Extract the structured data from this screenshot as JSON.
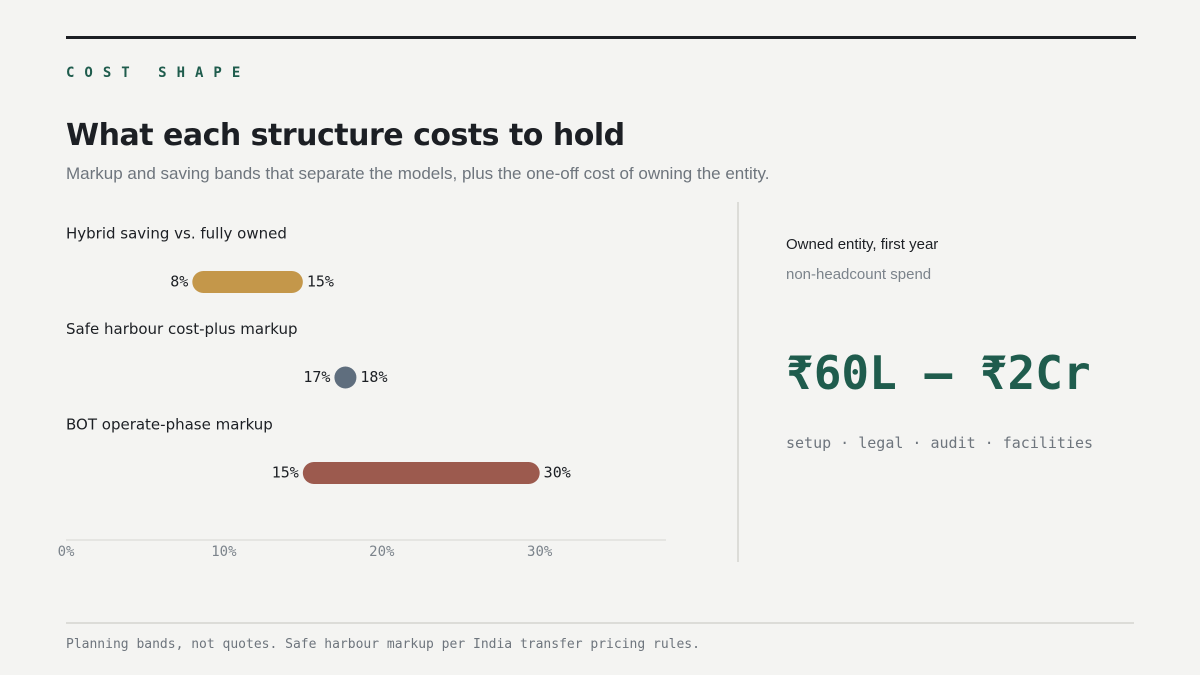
{
  "header": {
    "eyebrow": "COST SHAPE",
    "title": "What each structure costs to hold",
    "subtitle": "Markup and saving bands that separate the models, plus the one-off cost of owning the entity."
  },
  "chart_data": {
    "type": "bar",
    "subtype": "range",
    "categories": [
      "Hybrid saving vs. fully owned",
      "Safe harbour cost-plus markup",
      "BOT operate-phase markup"
    ],
    "ranges": [
      {
        "category": "Hybrid saving vs. fully owned",
        "low": 8,
        "high": 15,
        "low_label": "8%",
        "high_label": "15%",
        "color": "#c4974a"
      },
      {
        "category": "Safe harbour cost-plus markup",
        "low": 17,
        "high": 18,
        "low_label": "17%",
        "high_label": "18%",
        "color": "#5f6e7e"
      },
      {
        "category": "BOT operate-phase markup",
        "low": 15,
        "high": 30,
        "low_label": "15%",
        "high_label": "30%",
        "color": "#9c5a4e"
      }
    ],
    "x_ticks": [
      0,
      10,
      20,
      30
    ],
    "x_tick_labels": [
      "0%",
      "10%",
      "20%",
      "30%"
    ],
    "xlim": [
      0,
      38
    ],
    "grid": false
  },
  "side": {
    "title": "Owned entity, first year",
    "subtitle": "non-headcount spend",
    "value": "₹60L – ₹2Cr",
    "items": "setup · legal · audit · facilities"
  },
  "footer": {
    "note": "Planning bands, not quotes. Safe harbour markup per India transfer pricing rules."
  },
  "colors": {
    "accent": "#1f5c4d",
    "hybrid": "#c4974a",
    "safe_harbour": "#5f6e7e",
    "bot": "#9c5a4e"
  }
}
